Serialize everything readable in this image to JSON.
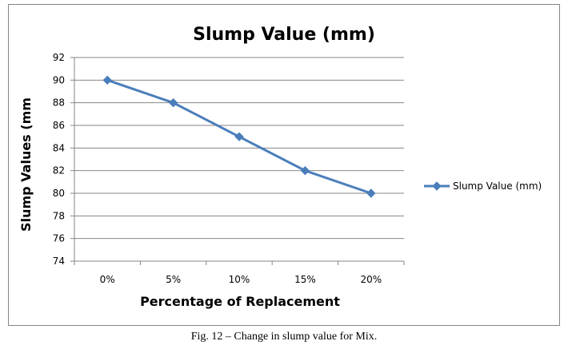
{
  "caption": "Fig. 12 – Change in slump value for Mix.",
  "chart_data": {
    "type": "line",
    "title": "Slump Value (mm)",
    "xlabel": "Percentage of Replacement",
    "ylabel": "Slump Values (mm",
    "categories": [
      "0%",
      "5%",
      "10%",
      "15%",
      "20%"
    ],
    "series": [
      {
        "name": "Slump Value (mm)",
        "values": [
          90,
          88,
          85,
          82,
          80
        ],
        "color": "#4a7ebb",
        "marker": "diamond"
      }
    ],
    "ylim": [
      74,
      92
    ],
    "yticks": [
      74,
      76,
      78,
      80,
      82,
      84,
      86,
      88,
      90,
      92
    ],
    "grid": "horizontal",
    "legend_position": "right"
  }
}
